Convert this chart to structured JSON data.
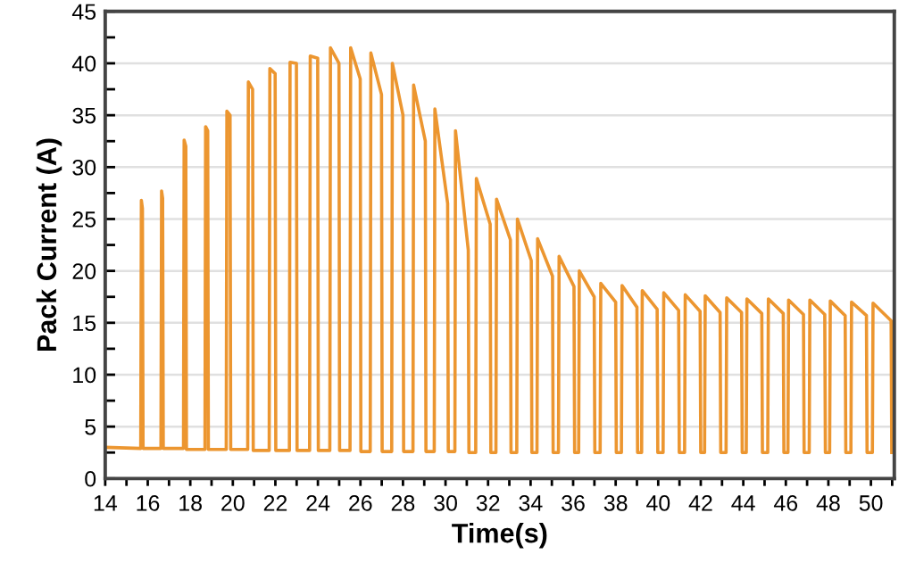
{
  "chart_data": {
    "type": "line",
    "xlabel": "Time(s)",
    "ylabel": "Pack Current (A)",
    "xlim": [
      14,
      51.1
    ],
    "ylim": [
      0,
      45
    ],
    "grid": "y",
    "marker": "none",
    "line_style": "solid",
    "xticks": [
      14,
      {
        "value": 15,
        "label": null
      },
      16,
      {
        "value": 17,
        "label": null
      },
      18,
      {
        "value": 19,
        "label": null
      },
      20,
      {
        "value": 21,
        "label": null
      },
      22,
      {
        "value": 23,
        "label": null
      },
      24,
      {
        "value": 25,
        "label": null
      },
      26,
      {
        "value": 27,
        "label": null
      },
      28,
      {
        "value": 29,
        "label": null
      },
      30,
      {
        "value": 31,
        "label": null
      },
      32,
      {
        "value": 33,
        "label": null
      },
      34,
      {
        "value": 35,
        "label": null
      },
      36,
      {
        "value": 37,
        "label": null
      },
      38,
      {
        "value": 39,
        "label": null
      },
      40,
      {
        "value": 41,
        "label": null
      },
      42,
      {
        "value": 43,
        "label": null
      },
      44,
      {
        "value": 45,
        "label": null
      },
      46,
      {
        "value": 47,
        "label": null
      },
      48,
      {
        "value": 49,
        "label": null
      },
      50,
      {
        "value": 51,
        "label": null
      }
    ],
    "yticks": [
      0,
      {
        "value": 2.5,
        "label": null
      },
      5,
      {
        "value": 7.5,
        "label": null
      },
      10,
      {
        "value": 12.5,
        "label": null
      },
      15,
      {
        "value": 17.5,
        "label": null
      },
      20,
      {
        "value": 22.5,
        "label": null
      },
      25,
      {
        "value": 27.5,
        "label": null
      },
      30,
      {
        "value": 32.5,
        "label": null
      },
      35,
      {
        "value": 37.5,
        "label": null
      },
      40,
      {
        "value": 42.5,
        "label": null
      },
      45
    ],
    "series": [
      {
        "color": "#ec9630",
        "x": [
          14,
          15.67,
          15.7,
          15.75,
          15.78,
          16.62,
          16.65,
          16.7,
          16.73,
          17.68,
          17.71,
          17.79,
          17.82,
          18.69,
          18.72,
          18.82,
          18.85,
          19.69,
          19.72,
          19.87,
          19.9,
          20.7,
          20.73,
          20.93,
          20.96,
          21.71,
          21.74,
          21.99,
          22.02,
          22.66,
          22.69,
          22.99,
          23.02,
          23.61,
          23.64,
          23.99,
          24.02,
          24.56,
          24.59,
          24.99,
          25.02,
          25.51,
          25.54,
          25.99,
          26.02,
          26.46,
          26.49,
          26.99,
          27.02,
          27.47,
          27.5,
          28.0,
          28.03,
          28.47,
          28.5,
          29.05,
          29.08,
          29.47,
          29.5,
          30.1,
          30.13,
          30.44,
          30.47,
          31.07,
          31.1,
          31.42,
          31.45,
          32.1,
          32.13,
          32.37,
          32.4,
          33.05,
          33.08,
          33.35,
          33.38,
          34.03,
          34.06,
          34.3,
          34.33,
          35.03,
          35.06,
          35.31,
          35.34,
          36.04,
          36.07,
          36.26,
          36.29,
          36.99,
          37.02,
          37.27,
          37.3,
          38.0,
          38.03,
          38.27,
          38.3,
          39.0,
          39.03,
          39.22,
          39.25,
          39.95,
          39.98,
          40.23,
          40.26,
          40.96,
          40.99,
          41.24,
          41.27,
          41.97,
          42.0,
          42.18,
          42.21,
          42.91,
          42.94,
          43.19,
          43.22,
          43.92,
          43.95,
          44.14,
          44.17,
          44.87,
          44.9,
          45.15,
          45.18,
          45.88,
          45.91,
          46.1,
          46.13,
          46.83,
          46.86,
          47.1,
          47.13,
          47.83,
          47.86,
          48.06,
          48.09,
          48.79,
          48.82,
          49.06,
          49.09,
          49.79,
          49.82,
          50.07,
          50.1,
          50.95,
          50.98
        ],
        "values": [
          3.0,
          2.9,
          26.8,
          26,
          2.9,
          2.9,
          27.7,
          27,
          2.9,
          2.9,
          32.6,
          32,
          2.8,
          2.8,
          33.9,
          33.5,
          2.8,
          2.8,
          35.4,
          35,
          2.8,
          2.8,
          38.2,
          37.5,
          2.7,
          2.7,
          39.5,
          39,
          2.7,
          2.7,
          40.1,
          40,
          2.7,
          2.7,
          40.7,
          40.5,
          2.7,
          2.7,
          41.5,
          40,
          2.7,
          2.7,
          41.5,
          38.5,
          2.6,
          2.6,
          41.0,
          37,
          2.6,
          2.6,
          40.0,
          35,
          2.6,
          2.6,
          37.9,
          32.5,
          2.6,
          2.6,
          35.6,
          26.5,
          2.6,
          2.6,
          33.5,
          22,
          2.5,
          2.5,
          28.9,
          24.5,
          2.5,
          2.5,
          26.9,
          23,
          2.5,
          2.5,
          25.0,
          21,
          2.5,
          2.5,
          23.1,
          19.5,
          2.5,
          2.5,
          21.4,
          18.5,
          2.5,
          2.5,
          20.0,
          17.5,
          2.5,
          2.5,
          18.8,
          17,
          2.5,
          2.5,
          18.6,
          16.5,
          2.5,
          2.5,
          18.1,
          16.3,
          2.5,
          2.5,
          17.9,
          16.2,
          2.5,
          2.5,
          17.7,
          16.1,
          2.5,
          2.5,
          17.6,
          16,
          2.5,
          2.5,
          17.4,
          16,
          2.5,
          2.5,
          17.3,
          15.9,
          2.5,
          2.5,
          17.3,
          15.9,
          2.5,
          2.5,
          17.2,
          15.8,
          2.5,
          2.5,
          17.2,
          15.8,
          2.5,
          2.5,
          17.1,
          15.7,
          2.5,
          2.5,
          17.0,
          15.7,
          2.5,
          2.5,
          16.9,
          15.2,
          2.5
        ]
      }
    ]
  }
}
